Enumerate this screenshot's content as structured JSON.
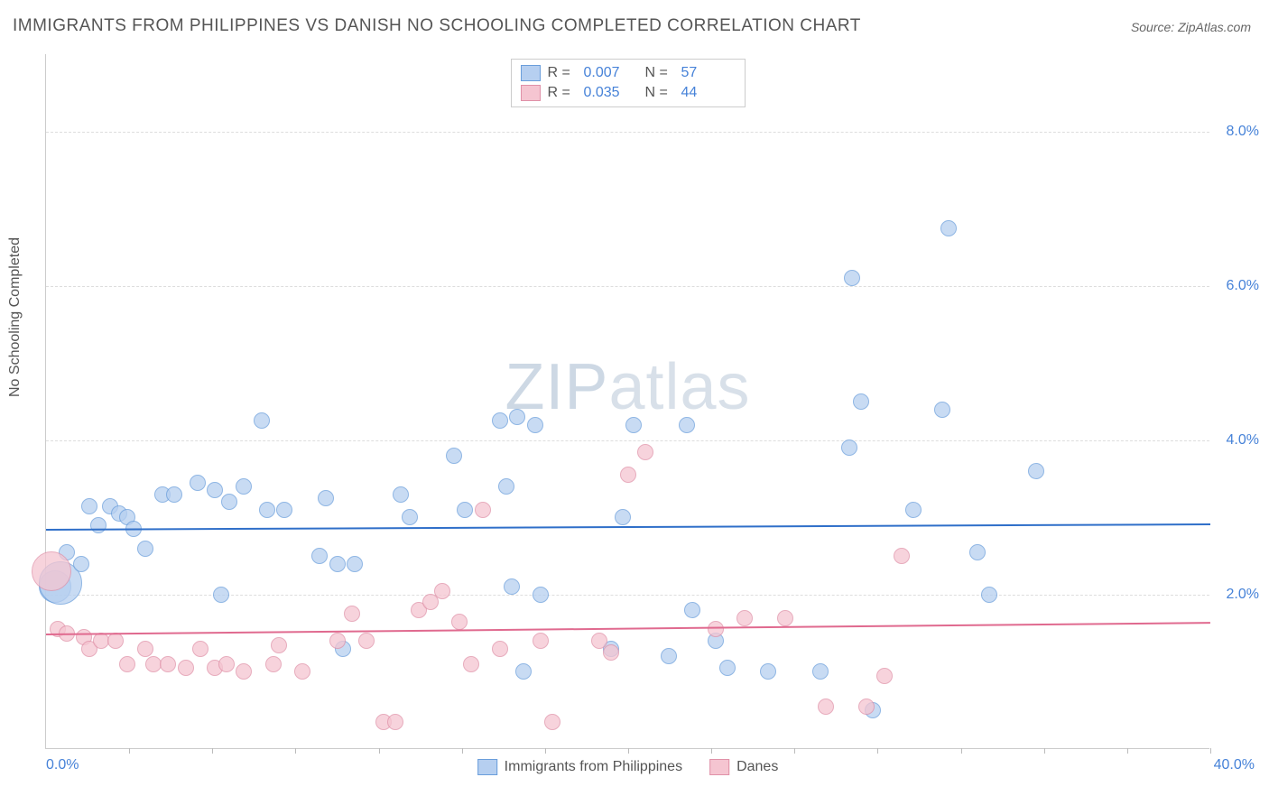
{
  "title": "IMMIGRANTS FROM PHILIPPINES VS DANISH NO SCHOOLING COMPLETED CORRELATION CHART",
  "source": "Source: ZipAtlas.com",
  "ylabel": "No Schooling Completed",
  "watermark": "ZIPatlas",
  "chart": {
    "type": "scatter",
    "xlim": [
      0,
      40
    ],
    "ylim": [
      0,
      9
    ],
    "x_tick_step": 2.857,
    "y_gridlines": [
      2,
      4,
      6,
      8
    ],
    "y_tick_labels": [
      "2.0%",
      "4.0%",
      "6.0%",
      "8.0%"
    ],
    "x_min_label": "0.0%",
    "x_max_label": "40.0%",
    "background_color": "#ffffff",
    "grid_color": "#dddddd",
    "axis_color": "#cccccc",
    "axis_label_color": "#4682d8",
    "marker_radius": 9,
    "marker_opacity": 0.75,
    "series": [
      {
        "name": "Immigrants from Philippines",
        "color_fill": "#b6cff0",
        "color_stroke": "#6a9edb",
        "r": "0.007",
        "n": "57",
        "trend": {
          "y_start": 2.85,
          "y_end": 2.92,
          "color": "#2f6fc9",
          "width": 2
        },
        "points": [
          [
            0.3,
            2.1,
            18
          ],
          [
            0.5,
            2.15,
            24
          ],
          [
            0.7,
            2.55
          ],
          [
            1.2,
            2.4
          ],
          [
            1.5,
            3.15
          ],
          [
            1.8,
            2.9
          ],
          [
            2.2,
            3.15
          ],
          [
            2.5,
            3.05
          ],
          [
            2.8,
            3.0
          ],
          [
            3.0,
            2.85
          ],
          [
            3.4,
            2.6
          ],
          [
            4.0,
            3.3
          ],
          [
            5.2,
            3.45
          ],
          [
            5.8,
            3.35
          ],
          [
            6.3,
            3.2
          ],
          [
            6.8,
            3.4
          ],
          [
            7.4,
            4.25
          ],
          [
            7.6,
            3.1
          ],
          [
            9.4,
            2.5
          ],
          [
            9.6,
            3.25
          ],
          [
            10.0,
            2.4
          ],
          [
            10.2,
            1.3
          ],
          [
            12.2,
            3.3
          ],
          [
            12.5,
            3.0
          ],
          [
            14.0,
            3.8
          ],
          [
            14.4,
            3.1
          ],
          [
            15.6,
            4.25
          ],
          [
            15.8,
            3.4
          ],
          [
            16.0,
            2.1
          ],
          [
            16.2,
            4.3
          ],
          [
            16.4,
            1.0
          ],
          [
            16.8,
            4.2
          ],
          [
            17.0,
            2.0
          ],
          [
            19.4,
            1.3
          ],
          [
            19.8,
            3.0
          ],
          [
            20.2,
            4.2
          ],
          [
            21.4,
            1.2
          ],
          [
            22.0,
            4.2
          ],
          [
            22.2,
            1.8
          ],
          [
            23.0,
            1.4
          ],
          [
            23.4,
            1.05
          ],
          [
            24.8,
            1.0
          ],
          [
            26.6,
            1.0
          ],
          [
            27.6,
            3.9
          ],
          [
            27.7,
            6.1
          ],
          [
            28.0,
            4.5
          ],
          [
            28.4,
            0.5
          ],
          [
            29.8,
            3.1
          ],
          [
            30.8,
            4.4
          ],
          [
            31.0,
            6.75
          ],
          [
            32.0,
            2.55
          ],
          [
            32.4,
            2.0
          ],
          [
            34.0,
            3.6
          ],
          [
            10.6,
            2.4
          ],
          [
            6.0,
            2.0
          ],
          [
            4.4,
            3.3
          ],
          [
            8.2,
            3.1
          ]
        ]
      },
      {
        "name": "Danes",
        "color_fill": "#f5c5d1",
        "color_stroke": "#e091a8",
        "r": "0.035",
        "n": "44",
        "trend": {
          "y_start": 1.5,
          "y_end": 1.65,
          "color": "#e06a8f",
          "width": 2
        },
        "points": [
          [
            0.2,
            2.3,
            22
          ],
          [
            0.4,
            1.55
          ],
          [
            0.7,
            1.5
          ],
          [
            1.3,
            1.45
          ],
          [
            1.5,
            1.3
          ],
          [
            1.9,
            1.4
          ],
          [
            2.4,
            1.4
          ],
          [
            2.8,
            1.1
          ],
          [
            3.4,
            1.3
          ],
          [
            3.7,
            1.1
          ],
          [
            4.2,
            1.1
          ],
          [
            4.8,
            1.05
          ],
          [
            5.3,
            1.3
          ],
          [
            5.8,
            1.05
          ],
          [
            6.2,
            1.1
          ],
          [
            6.8,
            1.0
          ],
          [
            7.8,
            1.1
          ],
          [
            8.0,
            1.35
          ],
          [
            8.8,
            1.0
          ],
          [
            10.0,
            1.4
          ],
          [
            10.5,
            1.75
          ],
          [
            11.0,
            1.4
          ],
          [
            11.6,
            0.35
          ],
          [
            12.0,
            0.35
          ],
          [
            12.8,
            1.8
          ],
          [
            13.2,
            1.9
          ],
          [
            13.6,
            2.05
          ],
          [
            14.2,
            1.65
          ],
          [
            14.6,
            1.1
          ],
          [
            15.0,
            3.1
          ],
          [
            15.6,
            1.3
          ],
          [
            17.0,
            1.4
          ],
          [
            17.4,
            0.35
          ],
          [
            19.0,
            1.4
          ],
          [
            19.4,
            1.25
          ],
          [
            20.0,
            3.55
          ],
          [
            20.6,
            3.85
          ],
          [
            23.0,
            1.55
          ],
          [
            24.0,
            1.7
          ],
          [
            25.4,
            1.7
          ],
          [
            26.8,
            0.55
          ],
          [
            28.2,
            0.55
          ],
          [
            28.8,
            0.95
          ],
          [
            29.4,
            2.5
          ]
        ]
      }
    ]
  }
}
